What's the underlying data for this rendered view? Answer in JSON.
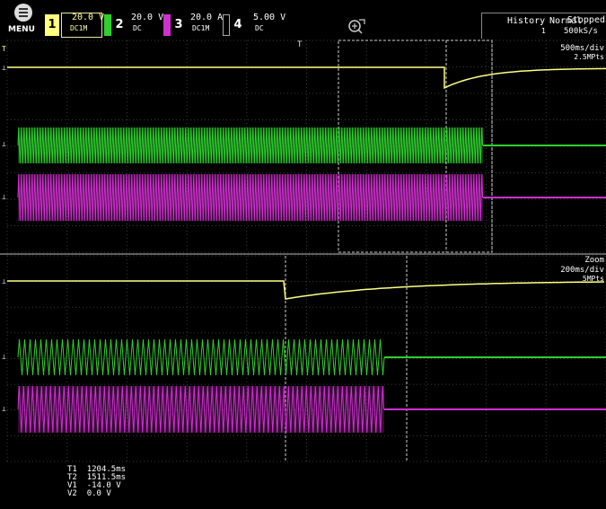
{
  "topbar": {
    "menu_label": "MENU",
    "channels": [
      {
        "num": "1",
        "value": "20.0 V",
        "coupling": "DC1M",
        "color": "#ffff80"
      },
      {
        "num": "2",
        "value": "20.0 V",
        "coupling": "DC",
        "color": "#2ed02e"
      },
      {
        "num": "3",
        "value": "20.0 A",
        "coupling": "DC1M",
        "color": "#d030d0"
      },
      {
        "num": "4",
        "value": "5.00 V",
        "coupling": "DC",
        "color": "#ffffff"
      }
    ],
    "status": "Stopped",
    "history_label": "History",
    "acq_mode": "Normal",
    "history_index": "1",
    "sample_rate": "500kS/s"
  },
  "main_window": {
    "timebase": "500ms/div",
    "record_length": "2.5MPts",
    "trigger_marker": "T"
  },
  "zoom_window": {
    "label": "Zoom",
    "timebase": "200ms/div",
    "record_length": "5MPts"
  },
  "cursor_readouts": [
    {
      "label": "T1",
      "value": "1204.5ms"
    },
    {
      "label": "T2",
      "value": "1511.5ms"
    },
    {
      "label": "V1",
      "value": "-14.0 V"
    },
    {
      "label": "V2",
      "value": "0.0 V"
    }
  ],
  "colors": {
    "ch1": "#ffff80",
    "ch2": "#2ed02e",
    "ch3": "#d030d0",
    "grid": "#3a3a3a",
    "cursor": "#dddddd"
  }
}
